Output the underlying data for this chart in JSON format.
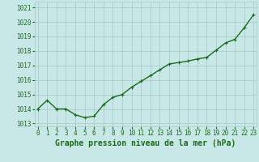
{
  "x": [
    0,
    1,
    2,
    3,
    4,
    5,
    6,
    7,
    8,
    9,
    10,
    11,
    12,
    13,
    14,
    15,
    16,
    17,
    18,
    19,
    20,
    21,
    22,
    23
  ],
  "y": [
    1014.0,
    1014.6,
    1014.0,
    1014.0,
    1013.6,
    1013.4,
    1013.5,
    1014.3,
    1014.8,
    1015.0,
    1015.5,
    1015.9,
    1016.3,
    1016.7,
    1017.1,
    1017.2,
    1017.3,
    1017.45,
    1017.55,
    1018.05,
    1018.55,
    1018.8,
    1019.6,
    1020.5
  ],
  "line_color": "#1a6b1a",
  "marker": "+",
  "marker_size": 3,
  "bg_color": "#c8e8e8",
  "grid_color": "#a8c8c8",
  "tick_color": "#1a6b1a",
  "label_color": "#1a6b1a",
  "xlabel": "Graphe pression niveau de la mer (hPa)",
  "ylim": [
    1012.8,
    1021.4
  ],
  "yticks": [
    1013,
    1014,
    1015,
    1016,
    1017,
    1018,
    1019,
    1020,
    1021
  ],
  "xticks": [
    0,
    1,
    2,
    3,
    4,
    5,
    6,
    7,
    8,
    9,
    10,
    11,
    12,
    13,
    14,
    15,
    16,
    17,
    18,
    19,
    20,
    21,
    22,
    23
  ],
  "xlim": [
    -0.3,
    23.3
  ],
  "xlabel_fontsize": 7,
  "tick_fontsize": 5.5,
  "line_width": 1.0,
  "marker_edge_width": 0.8
}
